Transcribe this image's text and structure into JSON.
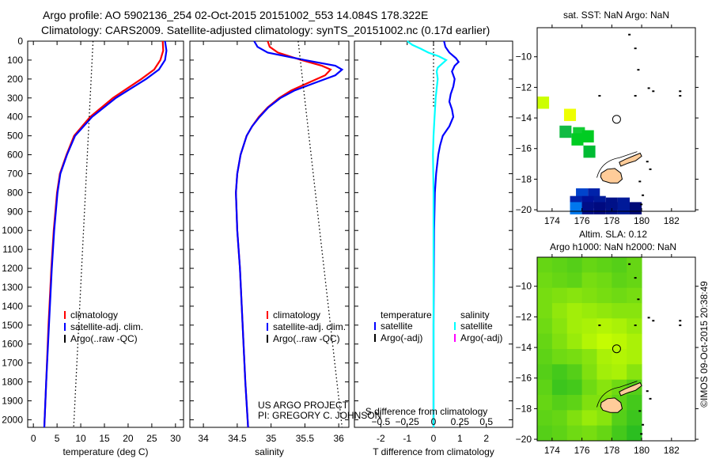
{
  "title_line1": "Argo profile: AO 5902136_254 02-Oct-2015 20151002_553 14.084S 178.322E",
  "title_line2": "Climatology: CARS2009. Satellite-adjusted climatology: synTS_20151002.nc (0.17d earlier)",
  "project_line1": "US ARGO PROJECT",
  "project_line2": "PI: GREGORY C. JOHNSON",
  "copyright": "©IMOS 09-Oct-2015 20:38:49",
  "colors": {
    "climatology": "#ff0000",
    "satellite": "#0000ff",
    "argo": "#000000",
    "sal_satellite": "#00ffff",
    "sal_argo": "#ff00ff",
    "land": "#ffcc99"
  },
  "chart_data": [
    {
      "type": "line",
      "id": "temperature",
      "xlabel": "temperature (deg C)",
      "xlim": [
        -1.2,
        31.7
      ],
      "ylim": [
        0,
        2040
      ],
      "xticks": [
        0,
        5,
        10,
        15,
        20,
        25,
        30
      ],
      "yticks": [
        0,
        100,
        200,
        300,
        400,
        500,
        600,
        700,
        800,
        900,
        1000,
        1100,
        1200,
        1300,
        1400,
        1500,
        1600,
        1700,
        1800,
        1900,
        2000
      ],
      "legend": [
        "climatology",
        "satellite-adj. clim.",
        "Argo(..raw -QC)"
      ],
      "series": [
        {
          "name": "climatology",
          "color": "#ff0000",
          "style": "solid",
          "depth": [
            0,
            50,
            100,
            150,
            200,
            250,
            300,
            400,
            500,
            600,
            700,
            800,
            1000,
            1200,
            1500,
            1800,
            2040
          ],
          "values": [
            27.3,
            27.4,
            26.8,
            25.5,
            22.8,
            19.8,
            16.8,
            12.0,
            8.6,
            7.0,
            5.6,
            5.0,
            4.3,
            3.8,
            3.2,
            2.7,
            2.3
          ]
        },
        {
          "name": "satellite-adj. clim.",
          "color": "#0000ff",
          "style": "solid",
          "depth": [
            0,
            50,
            100,
            150,
            200,
            250,
            300,
            400,
            500,
            600,
            700,
            800,
            1000,
            1200,
            1500,
            1800,
            2040
          ],
          "values": [
            27.8,
            28.1,
            27.8,
            26.5,
            23.8,
            20.6,
            17.4,
            12.4,
            8.8,
            7.1,
            5.7,
            5.1,
            4.4,
            3.9,
            3.3,
            2.7,
            2.3
          ]
        },
        {
          "name": "Argo(..raw -QC)",
          "color": "#000000",
          "style": "dotted",
          "depth": [
            0,
            2040
          ],
          "values": [
            12.6,
            8.5
          ]
        }
      ]
    },
    {
      "type": "line",
      "id": "salinity",
      "xlabel": "salinity",
      "xlim": [
        33.8,
        36.15
      ],
      "ylim": [
        0,
        2040
      ],
      "xticks": [
        34,
        34.5,
        35,
        35.5,
        36
      ],
      "legend": [
        "climatology",
        "satellite-adj. clim.",
        "Argo(..raw -QC)"
      ],
      "series": [
        {
          "name": "climatology",
          "color": "#ff0000",
          "style": "solid",
          "depth": [
            0,
            30,
            60,
            100,
            130,
            150,
            180,
            220,
            260,
            300,
            350,
            400,
            450,
            500,
            600,
            700,
            800,
            1000,
            1200,
            1500,
            1800,
            2040
          ],
          "values": [
            34.95,
            34.98,
            35.1,
            35.45,
            35.75,
            35.88,
            35.8,
            35.55,
            35.3,
            35.12,
            34.95,
            34.82,
            34.72,
            34.64,
            34.55,
            34.5,
            34.48,
            34.5,
            34.54,
            34.58,
            34.62,
            34.66
          ]
        },
        {
          "name": "satellite-adj. clim.",
          "color": "#0000ff",
          "style": "solid",
          "depth": [
            0,
            30,
            60,
            100,
            130,
            150,
            180,
            220,
            260,
            300,
            350,
            400,
            450,
            500,
            600,
            700,
            800,
            1000,
            1200,
            1500,
            1800,
            2040
          ],
          "values": [
            34.75,
            34.8,
            34.95,
            35.5,
            35.95,
            36.05,
            35.95,
            35.65,
            35.35,
            35.14,
            34.96,
            34.83,
            34.72,
            34.64,
            34.55,
            34.5,
            34.48,
            34.5,
            34.54,
            34.58,
            34.62,
            34.66
          ]
        },
        {
          "name": "Argo(..raw -QC)",
          "color": "#000000",
          "style": "dotted",
          "depth": [
            0,
            2040
          ],
          "values": [
            35.4,
            36.05
          ]
        }
      ]
    },
    {
      "type": "line",
      "id": "difference",
      "xlabel": "T difference from climatology",
      "top_label": "S difference from climatology",
      "xlim": [
        -3,
        3
      ],
      "ylim": [
        0,
        2040
      ],
      "xticks": [
        -2,
        -1,
        0,
        1,
        2
      ],
      "s_ticks": [
        -0.5,
        -0.25,
        0,
        0.25,
        0.5
      ],
      "s_scale": 4,
      "legend_temperature": {
        "heading": "temperature",
        "items": [
          "satellite",
          "Argo(-adj)"
        ]
      },
      "legend_salinity": {
        "heading": "salinity",
        "items": [
          "satellite",
          "Argo(-adj)"
        ]
      },
      "series": [
        {
          "name": "temperature satellite",
          "color": "#0000ff",
          "style": "solid",
          "depth": [
            0,
            30,
            60,
            90,
            110,
            130,
            160,
            200,
            240,
            280,
            320,
            360,
            400,
            450,
            500,
            550,
            600,
            700,
            800,
            1000,
            1500,
            2040
          ],
          "values": [
            0.4,
            0.45,
            0.6,
            0.85,
            0.95,
            0.8,
            0.7,
            0.8,
            0.75,
            0.65,
            0.6,
            0.7,
            0.75,
            0.6,
            0.35,
            0.25,
            0.18,
            0.1,
            0.05,
            0.02,
            0.0,
            0.0
          ]
        },
        {
          "name": "salinity satellite",
          "color": "#00ffff",
          "style": "solid",
          "depth": [
            0,
            20,
            40,
            60,
            80,
            100,
            120,
            140,
            160,
            200,
            250,
            300,
            400,
            500,
            600,
            800,
            1000,
            1500,
            2040
          ],
          "values": [
            -0.25,
            -0.2,
            -0.12,
            -0.05,
            0.05,
            0.12,
            0.08,
            0.04,
            0.03,
            0.04,
            0.03,
            0.02,
            0.01,
            0.0,
            -0.005,
            0.0,
            0.0,
            0.0,
            0.0
          ]
        },
        {
          "name": "zero reference",
          "color": "#000000",
          "style": "dotted",
          "depth": [
            0,
            350
          ],
          "values": [
            0,
            0
          ]
        }
      ]
    },
    {
      "type": "heatmap",
      "id": "sst_map",
      "title": "sat. SST: NaN Argo: NaN",
      "xlim": [
        173.0,
        183.6
      ],
      "ylim": [
        -20.1,
        -8.1
      ],
      "xticks": [
        174,
        176,
        178,
        180,
        182
      ],
      "yticks": [
        -10,
        -12,
        -14,
        -16,
        -18,
        -20
      ],
      "float_position": [
        178.322,
        -14.084
      ],
      "cells": [
        {
          "lon": 173.4,
          "lat": -13.0,
          "color": "#ccff00"
        },
        {
          "lon": 175.2,
          "lat": -13.8,
          "color": "#eeff00"
        },
        {
          "lon": 174.9,
          "lat": -14.9,
          "color": "#11bb44"
        },
        {
          "lon": 175.8,
          "lat": -15.0,
          "color": "#11cc33"
        },
        {
          "lon": 175.7,
          "lat": -15.4,
          "color": "#00cc22"
        },
        {
          "lon": 176.4,
          "lat": -15.2,
          "color": "#00cc22"
        },
        {
          "lon": 176.5,
          "lat": -16.2,
          "color": "#00bb33"
        },
        {
          "lon": 176.0,
          "lat": -19.0,
          "color": "#0044cc"
        },
        {
          "lon": 176.8,
          "lat": -19.0,
          "color": "#0022aa"
        },
        {
          "lon": 175.6,
          "lat": -19.5,
          "color": "#0022aa"
        },
        {
          "lon": 176.4,
          "lat": -19.5,
          "color": "#001199"
        },
        {
          "lon": 177.2,
          "lat": -19.5,
          "color": "#001a99"
        },
        {
          "lon": 178.0,
          "lat": -19.6,
          "color": "#001188"
        },
        {
          "lon": 178.8,
          "lat": -19.6,
          "color": "#001a99"
        },
        {
          "lon": 175.6,
          "lat": -19.9,
          "color": "#0077ee"
        },
        {
          "lon": 176.4,
          "lat": -19.9,
          "color": "#000e88"
        },
        {
          "lon": 177.2,
          "lat": -19.9,
          "color": "#000a80"
        },
        {
          "lon": 178.0,
          "lat": -19.9,
          "color": "#001188"
        },
        {
          "lon": 178.8,
          "lat": -19.9,
          "color": "#001a99"
        },
        {
          "lon": 179.6,
          "lat": -19.9,
          "color": "#000a77"
        }
      ]
    },
    {
      "type": "heatmap",
      "id": "sla_map",
      "title_line1": "Altim. SLA: 0.12",
      "title_line2": "Argo h1000: NaN h2000: NaN",
      "xlim": [
        173.0,
        183.6
      ],
      "ylim": [
        -20.1,
        -8.1
      ],
      "xticks": [
        174,
        176,
        178,
        180,
        182
      ],
      "yticks": [
        -10,
        -12,
        -14,
        -16,
        -18,
        -20
      ],
      "float_position": [
        178.322,
        -14.084
      ],
      "grid_lon_start": 173.0,
      "grid_lat_start": -8.1,
      "grid_step": 1.0,
      "grid": [
        [
          0.4,
          0.35,
          0.3,
          0.4,
          0.35,
          0.3,
          0.4
        ],
        [
          0.45,
          0.4,
          0.35,
          0.5,
          0.45,
          0.35,
          0.4
        ],
        [
          0.5,
          0.55,
          0.6,
          0.55,
          0.5,
          0.45,
          0.5
        ],
        [
          0.5,
          0.65,
          0.75,
          0.7,
          0.65,
          0.6,
          0.6
        ],
        [
          0.45,
          0.6,
          0.75,
          0.8,
          0.85,
          0.8,
          0.7
        ],
        [
          0.4,
          0.55,
          0.7,
          0.85,
          0.95,
          0.9,
          0.8
        ],
        [
          0.35,
          0.45,
          0.5,
          0.6,
          0.8,
          0.85,
          0.8
        ],
        [
          0.3,
          0.2,
          0.3,
          0.55,
          0.75,
          0.8,
          0.6
        ],
        [
          0.35,
          0.15,
          0.2,
          0.45,
          0.6,
          0.45,
          0.3
        ],
        [
          0.4,
          0.3,
          0.35,
          0.55,
          0.55,
          0.35,
          0.2
        ],
        [
          0.35,
          0.4,
          0.55,
          0.7,
          0.6,
          0.3,
          0.15
        ],
        [
          0.3,
          0.35,
          0.45,
          0.5,
          0.4,
          0.2,
          0.05
        ]
      ]
    }
  ],
  "islands": [
    {
      "name": "viti-levu",
      "points": [
        [
          177.3,
          -17.6
        ],
        [
          177.7,
          -17.35
        ],
        [
          178.2,
          -17.3
        ],
        [
          178.6,
          -17.6
        ],
        [
          178.7,
          -18.0
        ],
        [
          178.4,
          -18.25
        ],
        [
          177.9,
          -18.25
        ],
        [
          177.4,
          -18.1
        ],
        [
          177.25,
          -17.85
        ]
      ]
    },
    {
      "name": "vanua-levu",
      "points": [
        [
          178.5,
          -16.9
        ],
        [
          178.9,
          -16.7
        ],
        [
          179.4,
          -16.5
        ],
        [
          179.9,
          -16.3
        ],
        [
          180.0,
          -16.5
        ],
        [
          179.6,
          -16.8
        ],
        [
          179.1,
          -16.95
        ],
        [
          178.6,
          -17.15
        ]
      ]
    }
  ]
}
